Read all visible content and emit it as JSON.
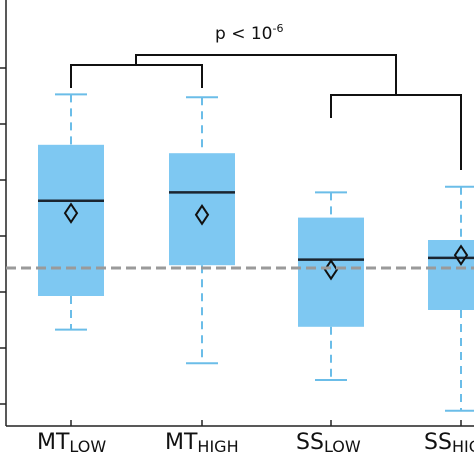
{
  "chart_data": {
    "type": "boxplot",
    "annotation": {
      "prefix": "p < 10",
      "exponent": "-6"
    },
    "reference_line": 0.0,
    "categories": [
      {
        "main": "MT",
        "sub": "LOW"
      },
      {
        "main": "MT",
        "sub": "HIGH"
      },
      {
        "main": "SS",
        "sub": "LOW"
      },
      {
        "main": "SS",
        "sub": "HIGH"
      }
    ],
    "boxes": [
      {
        "whisker_low": -1.1,
        "q1": -0.5,
        "median": 1.2,
        "q3": 2.2,
        "whisker_high": 3.1,
        "mean": 0.98
      },
      {
        "whisker_low": -1.7,
        "q1": 0.05,
        "median": 1.35,
        "q3": 2.05,
        "whisker_high": 3.05,
        "mean": 0.95
      },
      {
        "whisker_low": -2.0,
        "q1": -1.05,
        "median": 0.15,
        "q3": 0.9,
        "whisker_high": 1.35,
        "mean": -0.03
      },
      {
        "whisker_low": -2.55,
        "q1": -0.75,
        "median": 0.18,
        "q3": 0.5,
        "whisker_high": 1.45,
        "mean": 0.23
      }
    ],
    "colors": {
      "box": "#7ec8f2",
      "whisker": "#6bbde8",
      "reference": "#9a9a9a",
      "bracket": "#111111"
    }
  }
}
